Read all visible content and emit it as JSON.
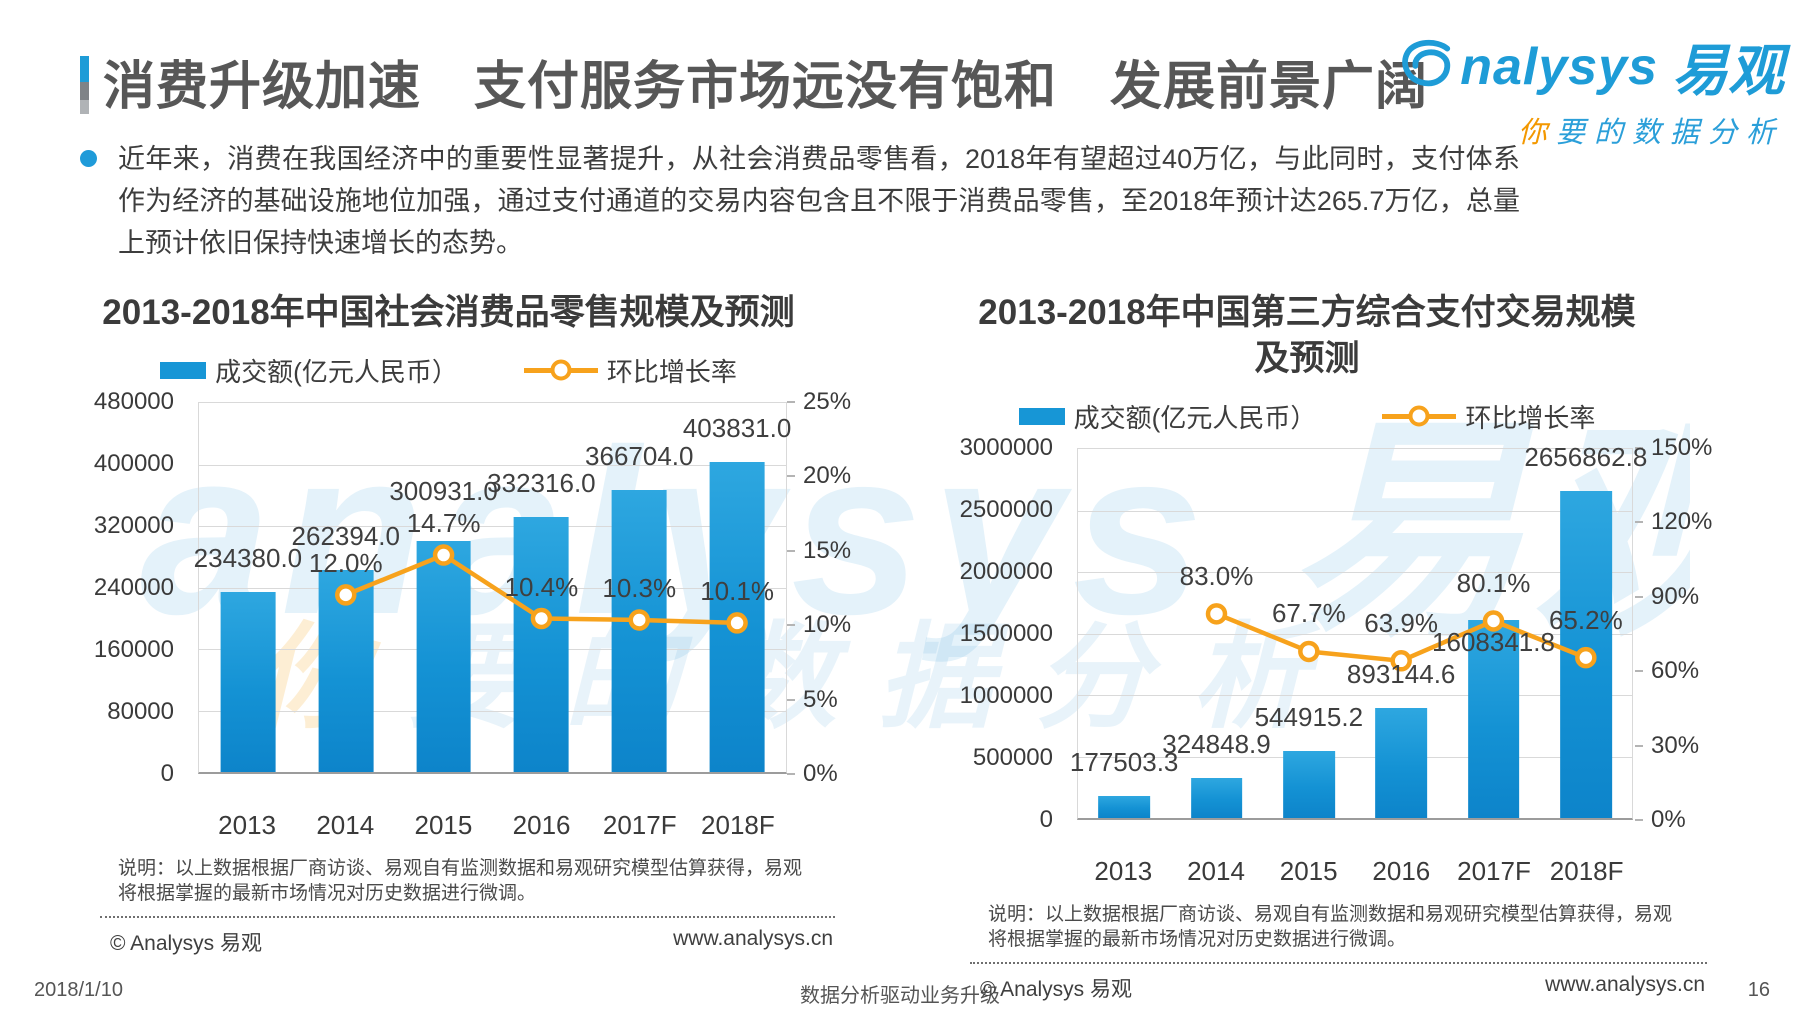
{
  "header": {
    "title": "消费升级加速　支付服务市场远没有饱和　发展前景广阔",
    "logo": {
      "brand_en": "nalysys",
      "brand_cn": "易观",
      "tagline_first": "你",
      "tagline_rest": "要的数据分析"
    }
  },
  "intro": {
    "text": "近年来，消费在我国经济中的重要性显著提升，从社会消费品零售看，2018年有望超过40万亿，与此同时，支付体系作为经济的基础设施地位加强，通过支付通道的交易内容包含且不限于消费品零售，至2018年预计达265.7万亿，总量上预计依旧保持快速增长的态势。"
  },
  "watermark": {
    "line1": "analysys 易观",
    "line2_first": "你",
    "line2_rest": "要的数据分析"
  },
  "colors": {
    "accent_blue": "#1E9CD7",
    "bar_blue": "#1492D4",
    "line_orange": "#F7A21C",
    "title_gray": "#575757"
  },
  "chart_data": [
    {
      "type": "bar+line",
      "title": "2013-2018年中国社会消费品零售规模及预测",
      "legend": [
        "成交额(亿元人民币）",
        "环比增长率"
      ],
      "legend_position": "top",
      "grid": true,
      "categories": [
        "2013",
        "2014",
        "2015",
        "2016",
        "2017F",
        "2018F"
      ],
      "series": [
        {
          "name": "成交额(亿元人民币）",
          "type": "bar",
          "values": [
            234380.0,
            262394.0,
            300931.0,
            332316.0,
            366704.0,
            403831.0
          ],
          "labels": [
            "234380.0",
            "262394.0",
            "300931.0",
            "332316.0",
            "366704.0",
            "403831.0"
          ]
        },
        {
          "name": "环比增长率",
          "type": "line",
          "values": [
            null,
            12.0,
            14.7,
            10.4,
            10.3,
            10.1
          ],
          "labels": [
            "",
            "12.0%",
            "14.7%",
            "10.4%",
            "10.3%",
            "10.1%"
          ]
        }
      ],
      "left_axis": {
        "min": 0,
        "max": 480000,
        "ticks": [
          "480000",
          "400000",
          "320000",
          "240000",
          "160000",
          "80000",
          "0"
        ]
      },
      "right_axis": {
        "min": 0,
        "max": 25,
        "ticks": [
          "25%",
          "20%",
          "15%",
          "10%",
          "5%",
          "0%"
        ]
      },
      "layout": {
        "bar_label_dy": [
          0,
          0,
          16,
          0,
          0,
          0
        ],
        "pct_label_gap": 18
      },
      "note": "说明：以上数据根据厂商访谈、易观自有监测数据和易观研究模型估算获得，易观将根据掌握的最新市场情况对历史数据进行微调。",
      "copyright": "© Analysys 易观",
      "website": "www.analysys.cn"
    },
    {
      "type": "bar+line",
      "title": "2013-2018年中国第三方综合支付交易规模及预测",
      "legend": [
        "成交额(亿元人民币）",
        "环比增长率"
      ],
      "legend_position": "top",
      "grid": true,
      "categories": [
        "2013",
        "2014",
        "2015",
        "2016",
        "2017F",
        "2018F"
      ],
      "series": [
        {
          "name": "成交额(亿元人民币）",
          "type": "bar",
          "values": [
            177503.3,
            324848.9,
            544915.2,
            893144.6,
            1608341.8,
            2656862.8
          ],
          "labels": [
            "177503.3",
            "324848.9",
            "544915.2",
            "893144.6",
            "1608341.8",
            "2656862.8"
          ]
        },
        {
          "name": "环比增长率",
          "type": "line",
          "values": [
            null,
            83.0,
            67.7,
            63.9,
            80.1,
            65.2
          ],
          "labels": [
            "",
            "83.0%",
            "67.7%",
            "63.9%",
            "80.1%",
            "65.2%"
          ]
        }
      ],
      "left_axis": {
        "min": 0,
        "max": 3000000,
        "ticks": [
          "3000000",
          "2500000",
          "2000000",
          "1500000",
          "1000000",
          "500000",
          "0"
        ]
      },
      "right_axis": {
        "min": 0,
        "max": 150,
        "ticks": [
          "150%",
          "120%",
          "90%",
          "60%",
          "30%",
          "0%"
        ]
      },
      "layout": {
        "bar_label_dy": [
          0,
          0,
          0,
          0,
          -56,
          0
        ],
        "pct_label_gap": 24
      },
      "note": "说明：以上数据根据厂商访谈、易观自有监测数据和易观研究模型估算获得，易观将根据掌握的最新市场情况对历史数据进行微调。",
      "copyright": "© Analysys 易观",
      "website": "www.analysys.cn"
    }
  ],
  "footer": {
    "date": "2018/1/10",
    "slogan": "数据分析驱动业务升级",
    "page": "16"
  }
}
